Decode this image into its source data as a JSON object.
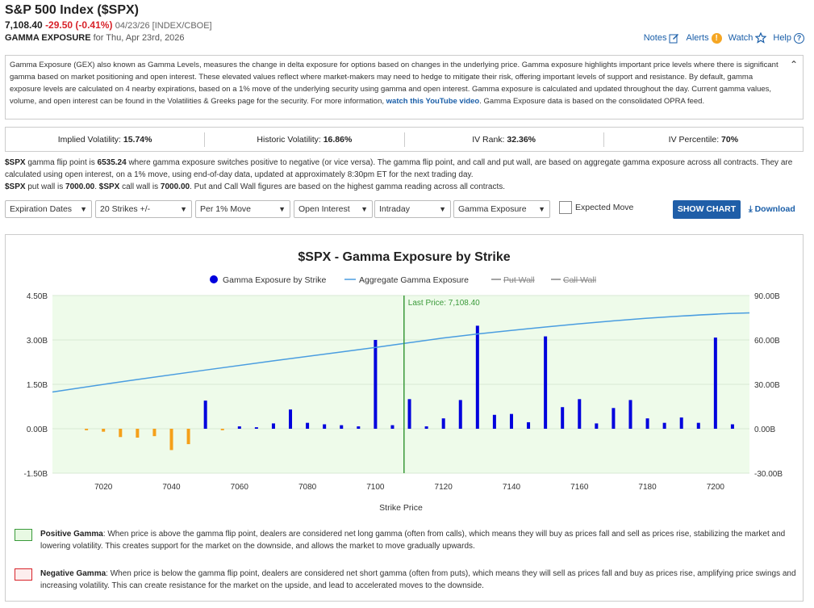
{
  "header": {
    "title": "S&P 500 Index ($SPX)",
    "price": "7,108.40",
    "change": "-29.50 (-0.41%)",
    "meta": "04/23/26 [INDEX/CBOE]",
    "sub_label": "GAMMA EXPOSURE",
    "sub_date": "for Thu, Apr 23rd, 2026"
  },
  "toplinks": {
    "notes": "Notes",
    "alerts": "Alerts",
    "alerts_badge": "!",
    "watch": "Watch",
    "help": "Help"
  },
  "description": {
    "text": "Gamma Exposure (GEX) also known as Gamma Levels, measures the change in delta exposure for options based on changes in the underlying price. Gamma exposure highlights important price levels where there is significant gamma based on market positioning and open interest. These elevated values reflect where market-makers may need to hedge to mitigate their risk, offering important levels of support and resistance. By default, gamma exposure levels are calculated on 4 nearby expirations, based on a 1% move of the underlying security using gamma and open interest. Gamma exposure is calculated and updated throughout the day. Current gamma values, volume, and open interest can be found in the Volatilities & Greeks page for the security. For more information, ",
    "link": "watch this YouTube video",
    "tail": ". Gamma Exposure data is based on the consolidated OPRA feed."
  },
  "stats": [
    {
      "label": "Implied Volatility:",
      "value": "15.74%"
    },
    {
      "label": "Historic Volatility:",
      "value": "16.86%"
    },
    {
      "label": "IV Rank:",
      "value": "32.36%"
    },
    {
      "label": "IV Percentile:",
      "value": "70%"
    }
  ],
  "info": {
    "l1_sym": "$SPX",
    "l1_a": " gamma flip point is ",
    "l1_val": "6535.24",
    "l1_b": " where gamma exposure switches positive to negative (or vice versa). The gamma flip point, and call and put wall, are based on aggregate gamma exposure across all contracts. They are calculated using open interest, on a 1% move, using end-of-day data, updated at approximately 8:30pm ET for the next trading day.",
    "l2_sym1": "$SPX",
    "l2_a": " put wall is ",
    "l2_put": "7000.00",
    "l2_b": ". ",
    "l2_sym2": "$SPX",
    "l2_c": " call wall is ",
    "l2_call": "7000.00",
    "l2_d": ". Put and Call Wall figures are based on the highest gamma reading across all contracts."
  },
  "controls": {
    "expiration": "Expiration Dates",
    "strikes": "20 Strikes +/-",
    "move": "Per 1% Move",
    "interest": "Open Interest",
    "period": "Intraday",
    "metric": "Gamma Exposure",
    "expected_move": "Expected Move",
    "show_chart": "SHOW CHART",
    "download": "Download"
  },
  "chart_data": {
    "type": "bar",
    "title": "$SPX - Gamma Exposure by Strike",
    "xlabel": "Strike Price",
    "xlim": [
      7005,
      7210
    ],
    "ylim": [
      -1.5,
      4.5
    ],
    "y2lim": [
      -30,
      90
    ],
    "yticks": [
      "4.50B",
      "3.00B",
      "1.50B",
      "0.00B",
      "-1.50B"
    ],
    "y2ticks": [
      "90.00B",
      "60.00B",
      "30.00B",
      "0.00B",
      "-30.00B"
    ],
    "xticks": [
      "7020",
      "7040",
      "7060",
      "7080",
      "7100",
      "7120",
      "7140",
      "7160",
      "7180",
      "7200"
    ],
    "last_price_label": "Last Price: 7,108.40",
    "last_price": 7108.4,
    "legend": [
      "Gamma Exposure by Strike",
      "Aggregate Gamma Exposure",
      "Put Wall",
      "Call Wall"
    ],
    "colors": {
      "positive": "#0000dd",
      "negative": "#f5a01a",
      "aggregate": "#4a9de0",
      "last_price": "#3a9a3a",
      "bg": "#eefbea"
    },
    "bars": [
      {
        "x": 7015,
        "y": -0.05
      },
      {
        "x": 7020,
        "y": -0.1
      },
      {
        "x": 7025,
        "y": -0.28
      },
      {
        "x": 7030,
        "y": -0.3
      },
      {
        "x": 7035,
        "y": -0.25
      },
      {
        "x": 7040,
        "y": -0.72
      },
      {
        "x": 7045,
        "y": -0.52
      },
      {
        "x": 7050,
        "y": 0.95
      },
      {
        "x": 7055,
        "y": -0.05
      },
      {
        "x": 7060,
        "y": 0.08
      },
      {
        "x": 7065,
        "y": 0.05
      },
      {
        "x": 7070,
        "y": 0.18
      },
      {
        "x": 7075,
        "y": 0.65
      },
      {
        "x": 7080,
        "y": 0.2
      },
      {
        "x": 7085,
        "y": 0.15
      },
      {
        "x": 7090,
        "y": 0.12
      },
      {
        "x": 7095,
        "y": 0.08
      },
      {
        "x": 7100,
        "y": 3.0
      },
      {
        "x": 7105,
        "y": 0.12
      },
      {
        "x": 7110,
        "y": 1.0
      },
      {
        "x": 7115,
        "y": 0.08
      },
      {
        "x": 7120,
        "y": 0.35
      },
      {
        "x": 7125,
        "y": 0.97
      },
      {
        "x": 7130,
        "y": 3.48
      },
      {
        "x": 7135,
        "y": 0.47
      },
      {
        "x": 7140,
        "y": 0.5
      },
      {
        "x": 7145,
        "y": 0.22
      },
      {
        "x": 7150,
        "y": 3.12
      },
      {
        "x": 7155,
        "y": 0.73
      },
      {
        "x": 7160,
        "y": 1.0
      },
      {
        "x": 7165,
        "y": 0.18
      },
      {
        "x": 7170,
        "y": 0.7
      },
      {
        "x": 7175,
        "y": 0.97
      },
      {
        "x": 7180,
        "y": 0.35
      },
      {
        "x": 7185,
        "y": 0.2
      },
      {
        "x": 7190,
        "y": 0.38
      },
      {
        "x": 7195,
        "y": 0.2
      },
      {
        "x": 7200,
        "y": 3.08
      },
      {
        "x": 7205,
        "y": 0.15
      }
    ],
    "aggregate": [
      {
        "x": 7005,
        "y": 24.8
      },
      {
        "x": 7020,
        "y": 30.0
      },
      {
        "x": 7040,
        "y": 36.5
      },
      {
        "x": 7060,
        "y": 42.8
      },
      {
        "x": 7080,
        "y": 49.0
      },
      {
        "x": 7100,
        "y": 54.8
      },
      {
        "x": 7120,
        "y": 61.5
      },
      {
        "x": 7140,
        "y": 66.5
      },
      {
        "x": 7160,
        "y": 71.0
      },
      {
        "x": 7180,
        "y": 74.8
      },
      {
        "x": 7200,
        "y": 77.5
      },
      {
        "x": 7210,
        "y": 78.3
      }
    ]
  },
  "legend_text": {
    "pos_title": "Positive Gamma",
    "pos_text": ": When price is above the gamma flip point, dealers are considered net long gamma (often from calls), which means they will buy as prices fall and sell as prices rise, stabilizing the market and lowering volatility. This creates support for the market on the downside, and allows the market to move gradually upwards.",
    "neg_title": "Negative Gamma",
    "neg_text": ": When price is below the gamma flip point, dealers are considered net short gamma (often from puts), which means they will sell as prices fall and buy as prices rise, amplifying price swings and increasing volatility. This can create resistance for the market on the upside, and lead to accelerated moves to the downside."
  }
}
